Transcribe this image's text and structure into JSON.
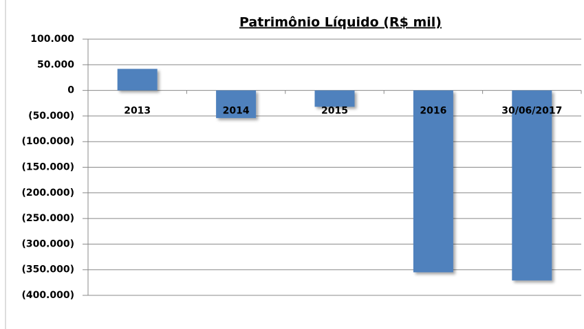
{
  "chart_data": {
    "type": "bar",
    "title": "Patrimônio Líquido (R$ mil)",
    "categories": [
      "2013",
      "2014",
      "2015",
      "2016",
      "30/06/2017"
    ],
    "values": [
      42000,
      -54000,
      -32000,
      -355000,
      -371000
    ],
    "color": "#4f81bd",
    "ylim": [
      -400000,
      100000
    ],
    "yticks": [
      {
        "value": 100000,
        "label": "100.000"
      },
      {
        "value": 50000,
        "label": "50.000"
      },
      0,
      {
        "value": -50000,
        "label": "(50.000)"
      },
      {
        "value": -100000,
        "label": "(100.000)"
      },
      {
        "value": -150000,
        "label": "(150.000)"
      },
      {
        "value": -200000,
        "label": "(200.000)"
      },
      {
        "value": -250000,
        "label": "(250.000)"
      },
      {
        "value": -300000,
        "label": "(300.000)"
      },
      {
        "value": -350000,
        "label": "(350.000)"
      },
      {
        "value": -400000,
        "label": "(400.000)"
      }
    ],
    "grid": true
  }
}
